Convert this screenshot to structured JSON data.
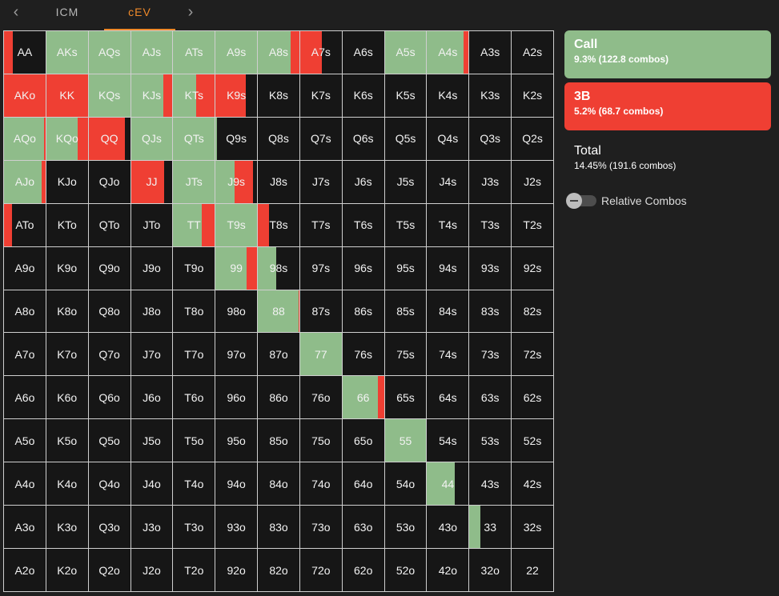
{
  "tabs": {
    "prev": "‹",
    "next": "›",
    "items": [
      {
        "label": "ICM",
        "active": false
      },
      {
        "label": "cEV",
        "active": true
      }
    ]
  },
  "colors": {
    "call": "#8fbc8a",
    "raise": "#ef3f33",
    "fold": "#161616",
    "accent": "#f08a2a"
  },
  "legend": {
    "call": {
      "name": "Call",
      "detail": "9.3% (122.8 combos)"
    },
    "raise": {
      "name": "3B",
      "detail": "5.2% (68.7 combos)"
    },
    "total": {
      "name": "Total",
      "detail": "14.45% (191.6 combos)"
    },
    "relative_toggle": {
      "label": "Relative Combos",
      "on": false
    }
  },
  "hands": [
    [
      "AA",
      "AKs",
      "AQs",
      "AJs",
      "ATs",
      "A9s",
      "A8s",
      "A7s",
      "A6s",
      "A5s",
      "A4s",
      "A3s",
      "A2s"
    ],
    [
      "AKo",
      "KK",
      "KQs",
      "KJs",
      "KTs",
      "K9s",
      "K8s",
      "K7s",
      "K6s",
      "K5s",
      "K4s",
      "K3s",
      "K2s"
    ],
    [
      "AQo",
      "KQo",
      "QQ",
      "QJs",
      "QTs",
      "Q9s",
      "Q8s",
      "Q7s",
      "Q6s",
      "Q5s",
      "Q4s",
      "Q3s",
      "Q2s"
    ],
    [
      "AJo",
      "KJo",
      "QJo",
      "JJ",
      "JTs",
      "J9s",
      "J8s",
      "J7s",
      "J6s",
      "J5s",
      "J4s",
      "J3s",
      "J2s"
    ],
    [
      "ATo",
      "KTo",
      "QTo",
      "JTo",
      "TT",
      "T9s",
      "T8s",
      "T7s",
      "T6s",
      "T5s",
      "T4s",
      "T3s",
      "T2s"
    ],
    [
      "A9o",
      "K9o",
      "Q9o",
      "J9o",
      "T9o",
      "99",
      "98s",
      "97s",
      "96s",
      "95s",
      "94s",
      "93s",
      "92s"
    ],
    [
      "A8o",
      "K8o",
      "Q8o",
      "J8o",
      "T8o",
      "98o",
      "88",
      "87s",
      "86s",
      "85s",
      "84s",
      "83s",
      "82s"
    ],
    [
      "A7o",
      "K7o",
      "Q7o",
      "J7o",
      "T7o",
      "97o",
      "87o",
      "77",
      "76s",
      "75s",
      "74s",
      "73s",
      "72s"
    ],
    [
      "A6o",
      "K6o",
      "Q6o",
      "J6o",
      "T6o",
      "96o",
      "86o",
      "76o",
      "66",
      "65s",
      "64s",
      "63s",
      "62s"
    ],
    [
      "A5o",
      "K5o",
      "Q5o",
      "J5o",
      "T5o",
      "95o",
      "85o",
      "75o",
      "65o",
      "55",
      "54s",
      "53s",
      "52s"
    ],
    [
      "A4o",
      "K4o",
      "Q4o",
      "J4o",
      "T4o",
      "94o",
      "84o",
      "74o",
      "64o",
      "54o",
      "44",
      "43s",
      "42s"
    ],
    [
      "A3o",
      "K3o",
      "Q3o",
      "J3o",
      "T3o",
      "93o",
      "83o",
      "73o",
      "63o",
      "53o",
      "43o",
      "33",
      "32s"
    ],
    [
      "A2o",
      "K2o",
      "Q2o",
      "J2o",
      "T2o",
      "92o",
      "82o",
      "72o",
      "62o",
      "52o",
      "42o",
      "32o",
      "22"
    ]
  ],
  "frequencies": {
    "AA": {
      "raise": 0.22
    },
    "AKs": {
      "call": 1.0
    },
    "AQs": {
      "call": 1.0
    },
    "AJs": {
      "call": 1.0
    },
    "ATs": {
      "call": 1.0
    },
    "A9s": {
      "call": 1.0
    },
    "A8s": {
      "call": 0.78,
      "raise": 0.22
    },
    "A7s": {
      "raise": 0.52
    },
    "A6s": {},
    "A5s": {
      "call": 1.0
    },
    "A4s": {
      "call": 0.88,
      "raise": 0.12
    },
    "AKo": {
      "raise": 1.0
    },
    "KK": {
      "raise": 1.0
    },
    "KQs": {
      "call": 1.0
    },
    "KJs": {
      "call": 0.78,
      "raise": 0.22
    },
    "KTs": {
      "call": 0.55,
      "raise": 0.45
    },
    "K9s": {
      "raise": 0.73
    },
    "AQo": {
      "call": 0.96,
      "raise": 0.04
    },
    "KQo": {
      "call": 0.75,
      "raise": 0.25
    },
    "QQ": {
      "raise": 0.88
    },
    "QJs": {
      "call": 1.0
    },
    "QTs": {
      "call": 1.0
    },
    "Q9s": {
      "call": 0.04
    },
    "AJo": {
      "call": 0.9,
      "raise": 0.1
    },
    "JJ": {
      "raise": 0.8
    },
    "JTs": {
      "call": 1.0
    },
    "J9s": {
      "call": 0.45,
      "raise": 0.45
    },
    "ATo": {
      "raise": 0.2
    },
    "TT": {
      "call": 0.68,
      "raise": 0.32
    },
    "T9s": {
      "call": 1.0
    },
    "T8s": {
      "raise": 0.26
    },
    "99": {
      "call": 0.75,
      "raise": 0.25
    },
    "98s": {
      "call": 0.44
    },
    "88": {
      "call": 0.98,
      "raise": 0.02
    },
    "77": {
      "call": 1.0
    },
    "66": {
      "call": 0.85,
      "raise": 0.15
    },
    "55": {
      "call": 1.0
    },
    "44": {
      "call": 0.66
    },
    "33": {
      "call": 0.27
    }
  }
}
